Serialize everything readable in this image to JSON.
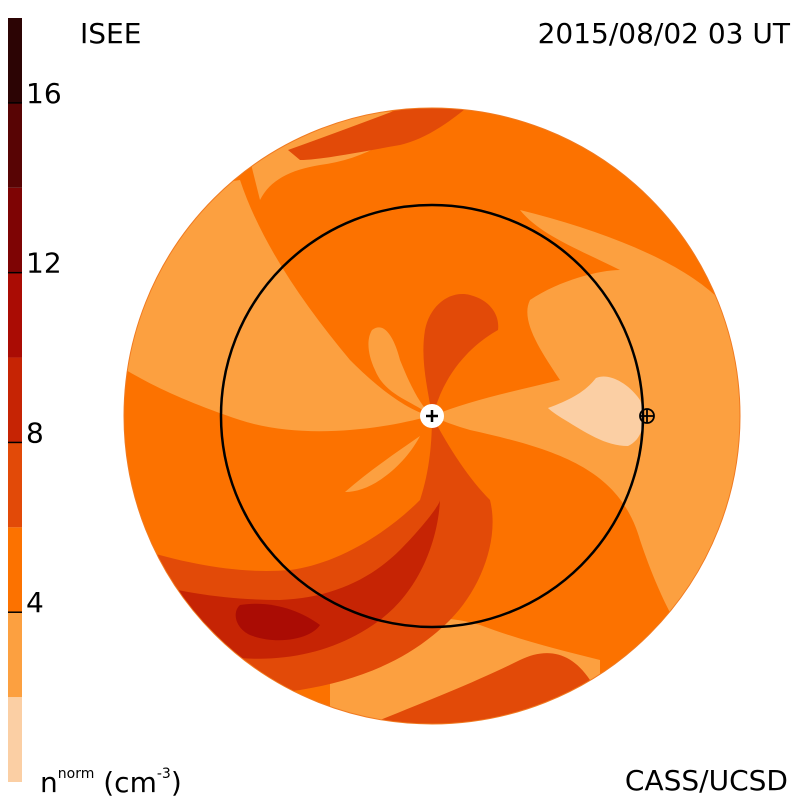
{
  "header": {
    "source": "ISEE",
    "timestamp": "2015/08/02 03 UT"
  },
  "footer": {
    "credit": "CASS/UCSD"
  },
  "colorbar": {
    "unit_base": "n",
    "unit_sup": "norm",
    "unit_suffix_open": " (cm",
    "unit_exp": "-3",
    "unit_suffix_close": ")",
    "ticks": [
      {
        "value": 4,
        "label": "4"
      },
      {
        "value": 8,
        "label": "8"
      },
      {
        "value": 12,
        "label": "12"
      },
      {
        "value": 16,
        "label": "16"
      }
    ],
    "range": [
      0,
      18
    ],
    "levels": [
      {
        "from": 0,
        "to": 2,
        "color": "#fbcfa4"
      },
      {
        "from": 2,
        "to": 4,
        "color": "#fca040"
      },
      {
        "from": 4,
        "to": 6,
        "color": "#fc7200"
      },
      {
        "from": 6,
        "to": 8,
        "color": "#e24a08"
      },
      {
        "from": 8,
        "to": 10,
        "color": "#c62404"
      },
      {
        "from": 10,
        "to": 12,
        "color": "#aa0c04"
      },
      {
        "from": 12,
        "to": 14,
        "color": "#7e0404"
      },
      {
        "from": 14,
        "to": 16,
        "color": "#580404"
      },
      {
        "from": 16,
        "to": 18,
        "color": "#2c0404"
      }
    ]
  },
  "chart_data": {
    "type": "heatmap",
    "description_kind": "heliospheric normalized density contour map (ecliptic plane view)",
    "variable": "normalized solar wind density",
    "unit": "cm^-3",
    "levels_boundaries": [
      0,
      2,
      4,
      6,
      8,
      10,
      12,
      14,
      16,
      18
    ],
    "ticks": [
      4,
      8,
      12,
      16
    ],
    "markers": [
      {
        "name": "sun",
        "symbol": "plus-in-white-circle"
      },
      {
        "name": "earth",
        "symbol": "circle-plus"
      }
    ],
    "reference_orbit": "circle (Earth orbit)"
  }
}
